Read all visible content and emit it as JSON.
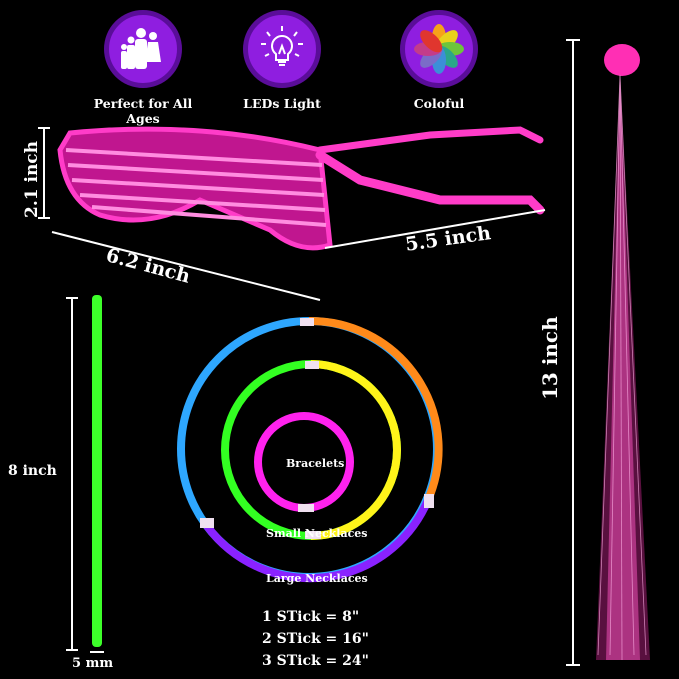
{
  "features": [
    {
      "icon": "family-icon",
      "label": "Perfect for All Ages"
    },
    {
      "icon": "lightbulb-icon",
      "label": "LEDs Light"
    },
    {
      "icon": "color-flower-icon",
      "label": "Coloful"
    }
  ],
  "glasses": {
    "height": "2.1 inch",
    "width": "6.2 inch",
    "arm": "5.5 inch",
    "color": "#ff3cc8"
  },
  "stick": {
    "length": "8 inch",
    "width": "5 mm",
    "color": "#3dff2a"
  },
  "rings": {
    "bracelets": "Bracelets",
    "small": "Small Necklaces",
    "large": "Large Necklaces"
  },
  "stick_lengths": [
    "1 STick = 8\"",
    "2 STick = 16\"",
    "3 STick = 24\""
  ],
  "fiber_hair": {
    "length": "13 inch",
    "color": "#ff2fb4"
  }
}
